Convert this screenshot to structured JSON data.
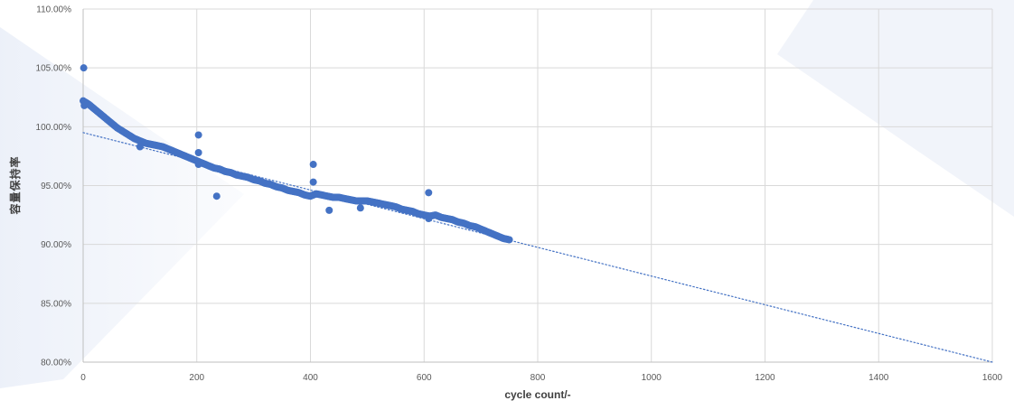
{
  "chart_data": {
    "type": "scatter",
    "title": "",
    "xlabel": "cycle count/-",
    "ylabel": "容量保持率",
    "xlim": [
      0,
      1600
    ],
    "ylim": [
      0.8,
      1.1
    ],
    "x_ticks": [
      0,
      200,
      400,
      600,
      800,
      1000,
      1200,
      1400,
      1600
    ],
    "x_tick_labels": [
      "0",
      "200",
      "400",
      "600",
      "800",
      "1000",
      "1200",
      "1400",
      "1600"
    ],
    "y_ticks": [
      0.8,
      0.85,
      0.9,
      0.95,
      1.0,
      1.05,
      1.1
    ],
    "y_tick_labels": [
      "80.00%",
      "85.00%",
      "90.00%",
      "95.00%",
      "100.00%",
      "105.00%",
      "110.00%"
    ],
    "grid": true,
    "legend": "none",
    "colors": {
      "points": "#4472c4",
      "trendline": "#4472c4",
      "grid": "#d9d9d9"
    },
    "trendline": {
      "style": "dotted",
      "points": [
        [
          0,
          0.995
        ],
        [
          1600,
          0.8
        ]
      ]
    },
    "series": [
      {
        "curve": [
          [
            0,
            1.022
          ],
          [
            10,
            1.019
          ],
          [
            20,
            1.015
          ],
          [
            30,
            1.011
          ],
          [
            40,
            1.007
          ],
          [
            50,
            1.003
          ],
          [
            60,
            0.999
          ],
          [
            70,
            0.996
          ],
          [
            80,
            0.993
          ],
          [
            90,
            0.99
          ],
          [
            100,
            0.988
          ],
          [
            110,
            0.986
          ],
          [
            120,
            0.985
          ],
          [
            130,
            0.984
          ],
          [
            140,
            0.983
          ],
          [
            150,
            0.981
          ],
          [
            160,
            0.979
          ],
          [
            170,
            0.977
          ],
          [
            180,
            0.975
          ],
          [
            190,
            0.973
          ],
          [
            200,
            0.971
          ],
          [
            210,
            0.969
          ],
          [
            220,
            0.967
          ],
          [
            230,
            0.965
          ],
          [
            240,
            0.964
          ],
          [
            250,
            0.962
          ],
          [
            260,
            0.961
          ],
          [
            270,
            0.959
          ],
          [
            280,
            0.958
          ],
          [
            290,
            0.957
          ],
          [
            300,
            0.955
          ],
          [
            310,
            0.954
          ],
          [
            320,
            0.952
          ],
          [
            330,
            0.951
          ],
          [
            340,
            0.949
          ],
          [
            350,
            0.948
          ],
          [
            360,
            0.946
          ],
          [
            370,
            0.945
          ],
          [
            380,
            0.944
          ],
          [
            390,
            0.942
          ],
          [
            400,
            0.941
          ],
          [
            410,
            0.943
          ],
          [
            420,
            0.942
          ],
          [
            430,
            0.941
          ],
          [
            440,
            0.94
          ],
          [
            450,
            0.94
          ],
          [
            460,
            0.939
          ],
          [
            470,
            0.938
          ],
          [
            480,
            0.937
          ],
          [
            490,
            0.937
          ],
          [
            500,
            0.937
          ],
          [
            510,
            0.936
          ],
          [
            520,
            0.935
          ],
          [
            530,
            0.934
          ],
          [
            540,
            0.933
          ],
          [
            550,
            0.932
          ],
          [
            560,
            0.93
          ],
          [
            570,
            0.929
          ],
          [
            580,
            0.928
          ],
          [
            590,
            0.926
          ],
          [
            600,
            0.925
          ],
          [
            610,
            0.924
          ],
          [
            620,
            0.925
          ],
          [
            630,
            0.923
          ],
          [
            640,
            0.922
          ],
          [
            650,
            0.921
          ],
          [
            660,
            0.919
          ],
          [
            670,
            0.918
          ],
          [
            680,
            0.916
          ],
          [
            690,
            0.915
          ],
          [
            700,
            0.913
          ],
          [
            710,
            0.911
          ],
          [
            720,
            0.909
          ],
          [
            730,
            0.907
          ],
          [
            740,
            0.905
          ],
          [
            750,
            0.904
          ]
        ],
        "outliers": [
          [
            1,
            1.05
          ],
          [
            2,
            1.018
          ],
          [
            100,
            0.983
          ],
          [
            203,
            0.993
          ],
          [
            203,
            0.978
          ],
          [
            203,
            0.968
          ],
          [
            235,
            0.941
          ],
          [
            405,
            0.968
          ],
          [
            405,
            0.953
          ],
          [
            433,
            0.929
          ],
          [
            488,
            0.931
          ],
          [
            608,
            0.944
          ],
          [
            608,
            0.922
          ]
        ]
      }
    ]
  }
}
